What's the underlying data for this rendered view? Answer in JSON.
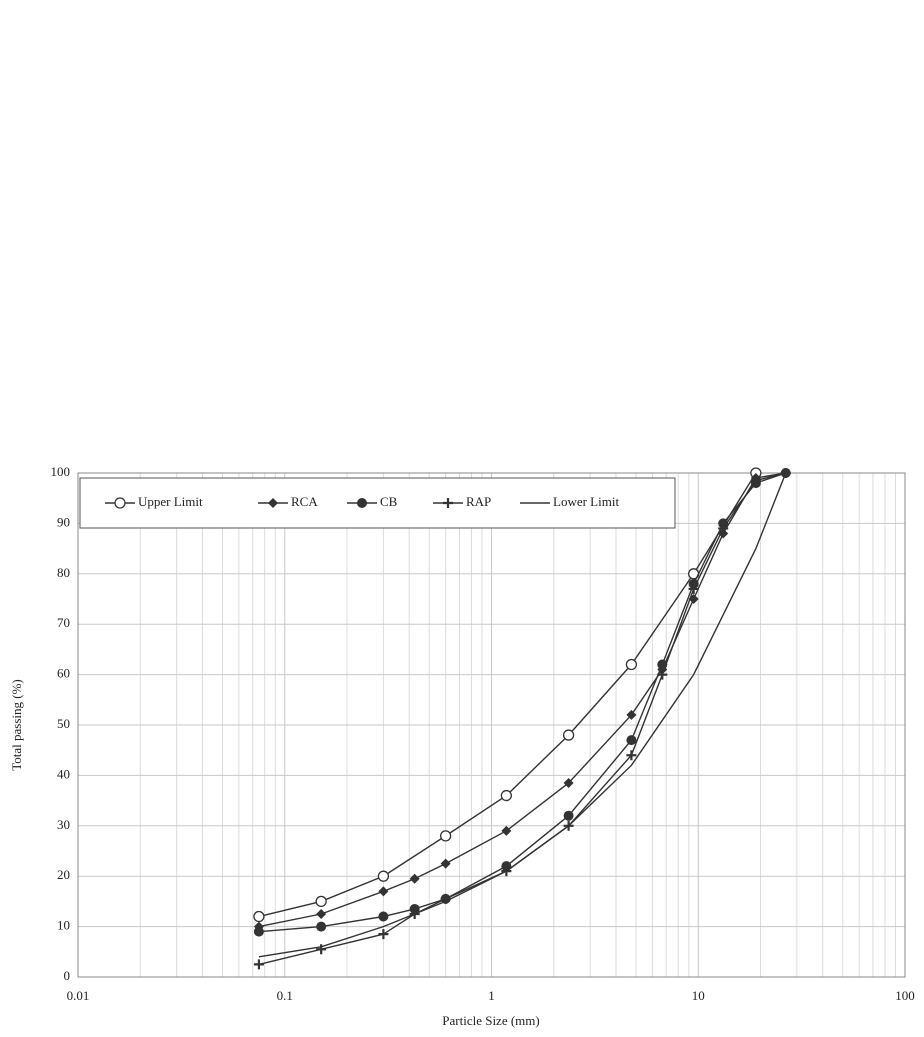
{
  "chart_data": {
    "type": "line",
    "x_label": "Particle Size (mm)",
    "y_label": "Total passing (%)",
    "x_log": true,
    "grid": true,
    "legend": "top-left",
    "xlim": [
      0.01,
      100
    ],
    "xticks": [
      0.01,
      0.1,
      1,
      10,
      100
    ],
    "ylim": [
      0,
      100
    ],
    "yticks": [
      0,
      10,
      20,
      30,
      40,
      50,
      60,
      70,
      80,
      90,
      100
    ],
    "series": [
      {
        "name": "Upper Limit",
        "color": "#333333",
        "marker": "open-circle",
        "x": [
          0.075,
          0.15,
          0.3,
          0.6,
          1.18,
          2.36,
          4.75,
          9.5,
          19
        ],
        "values": [
          12,
          15,
          20,
          28,
          36,
          48,
          62,
          80,
          100
        ]
      },
      {
        "name": "RCA",
        "color": "#333333",
        "marker": "diamond",
        "x": [
          0.075,
          0.15,
          0.3,
          0.425,
          0.6,
          1.18,
          2.36,
          4.75,
          6.7,
          9.5,
          13.2,
          19,
          26.5
        ],
        "values": [
          10,
          12.5,
          17,
          19.5,
          22.5,
          29,
          38.5,
          52,
          61,
          75,
          88,
          99,
          100
        ]
      },
      {
        "name": "CB",
        "color": "#333333",
        "marker": "circle",
        "x": [
          0.075,
          0.15,
          0.3,
          0.425,
          0.6,
          1.18,
          2.36,
          4.75,
          6.7,
          9.5,
          13.2,
          19,
          26.5
        ],
        "values": [
          9,
          10,
          12,
          13.5,
          15.5,
          22,
          32,
          47,
          62,
          78,
          90,
          98,
          100
        ]
      },
      {
        "name": "RAP",
        "color": "#333333",
        "marker": "plus",
        "x": [
          0.075,
          0.15,
          0.3,
          0.425,
          0.6,
          1.18,
          2.36,
          4.75,
          6.7,
          9.5,
          13.2,
          19,
          26.5
        ],
        "values": [
          2.5,
          5.5,
          8.5,
          12.5,
          15.5,
          21,
          30,
          44,
          60,
          77,
          89,
          98.5,
          100
        ]
      },
      {
        "name": "Lower Limit",
        "color": "#333333",
        "marker": "none",
        "x": [
          0.075,
          0.15,
          0.3,
          0.6,
          1.18,
          2.36,
          4.75,
          9.5,
          19,
          26.5
        ],
        "values": [
          4,
          6,
          10,
          15,
          21,
          30,
          42,
          60,
          85,
          100
        ]
      }
    ]
  }
}
